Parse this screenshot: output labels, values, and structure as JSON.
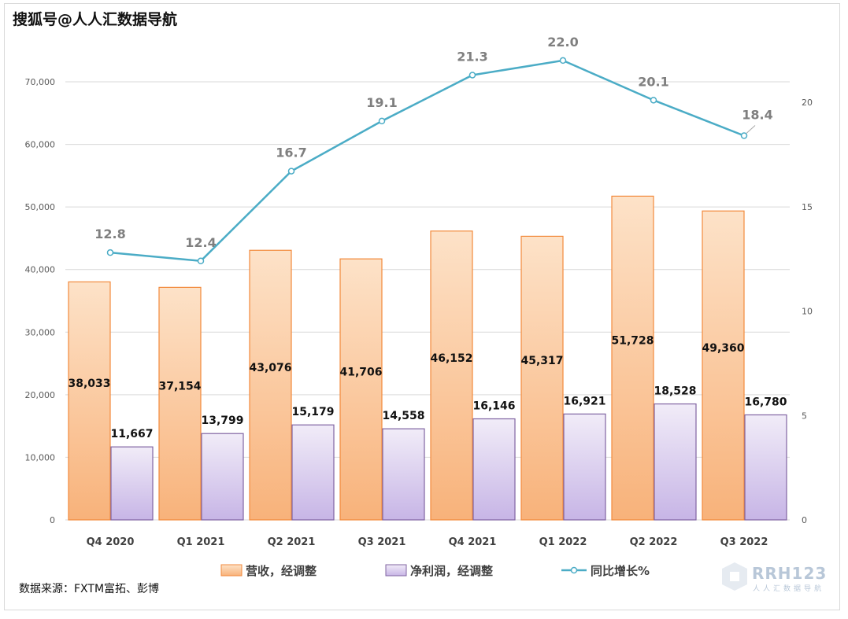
{
  "watermark": "搜狐号@人人汇数据导航",
  "source_note": "数据来源：FXTM富拓、彭博",
  "logo": {
    "text": "RRH123",
    "subtext": "人人汇数据导航"
  },
  "colors": {
    "revenue_fill_top": "#fde2c8",
    "revenue_fill_bottom": "#f8b27a",
    "revenue_stroke": "#f28a3c",
    "profit_fill_top": "#f1ecf8",
    "profit_fill_bottom": "#c7b5e6",
    "profit_stroke": "#8064a2",
    "growth_line": "#4bacc6"
  },
  "chart_data": {
    "type": "bar",
    "title": "",
    "categories": [
      "Q4 2020",
      "Q1 2021",
      "Q2 2021",
      "Q3 2021",
      "Q4 2021",
      "Q1 2022",
      "Q2 2022",
      "Q3 2022"
    ],
    "series": [
      {
        "name": "营收，经调整",
        "type": "bar",
        "axis": "left",
        "values": [
          38033,
          37154,
          43076,
          41706,
          46152,
          45317,
          51728,
          49360
        ],
        "labels": [
          "38,033",
          "37,154",
          "43,076",
          "41,706",
          "46,152",
          "45,317",
          "51,728",
          "49,360"
        ]
      },
      {
        "name": "净利润，经调整",
        "type": "bar",
        "axis": "left",
        "values": [
          11667,
          13799,
          15179,
          14558,
          16146,
          16921,
          18528,
          16780
        ],
        "labels": [
          "11,667",
          "13,799",
          "15,179",
          "14,558",
          "16,146",
          "16,921",
          "18,528",
          "16,780"
        ]
      },
      {
        "name": "同比增长%",
        "type": "line",
        "axis": "right",
        "values": [
          12.8,
          12.4,
          16.7,
          19.1,
          21.3,
          22.0,
          20.1,
          18.4
        ],
        "labels": [
          "12.8",
          "12.4",
          "16.7",
          "19.1",
          "21.3",
          "22.0",
          "20.1",
          "18.4"
        ]
      }
    ],
    "y_left": {
      "min": 0,
      "max": 70000,
      "ticks": [
        0,
        10000,
        20000,
        30000,
        40000,
        50000,
        60000,
        70000
      ],
      "tick_labels": [
        "0",
        "10,000",
        "20,000",
        "30,000",
        "40,000",
        "50,000",
        "60,000",
        "70,000"
      ]
    },
    "y_right": {
      "min": 0,
      "max": 20,
      "ticks": [
        0,
        5,
        10,
        15,
        20
      ],
      "tick_labels": [
        "0",
        "5",
        "10",
        "15",
        "20"
      ]
    },
    "grid": true,
    "legend_position": "bottom"
  }
}
